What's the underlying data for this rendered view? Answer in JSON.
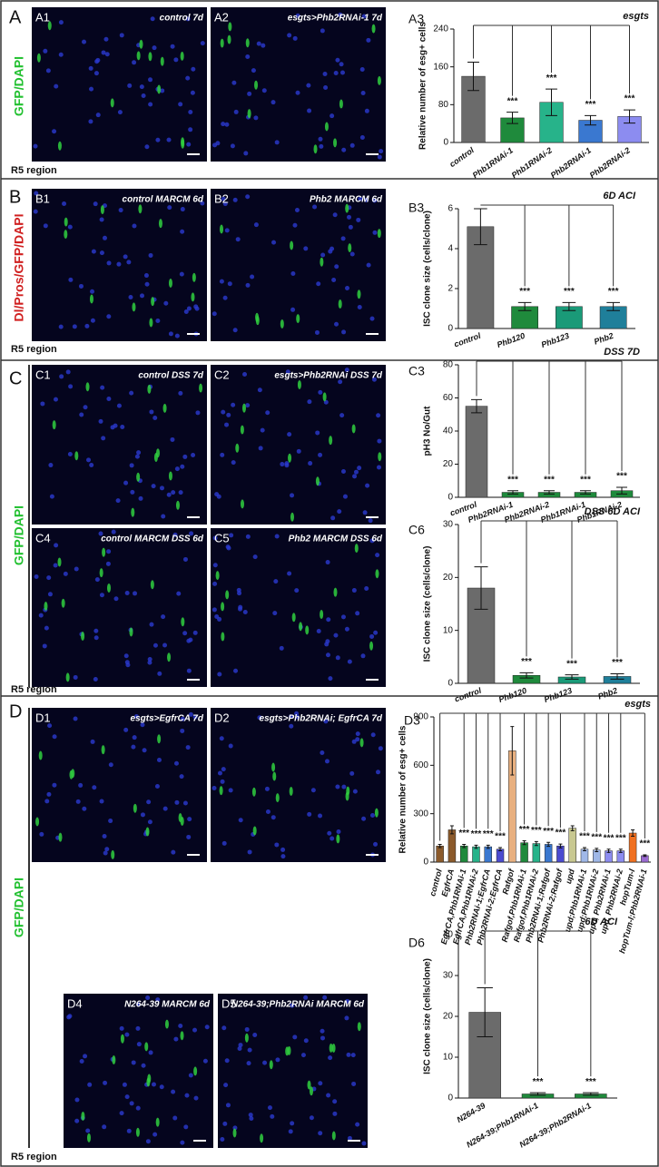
{
  "panels": [
    {
      "letter": "A",
      "side_label": "GFP/DAPI",
      "region": "R5 region"
    },
    {
      "letter": "B",
      "side_label": "Dl/Pros/GFP/DAPI",
      "region": "R5 region"
    },
    {
      "letter": "C",
      "side_label": "GFP/DAPI",
      "region": "R5 region"
    },
    {
      "letter": "D",
      "side_label": "GFP/DAPI",
      "region": "R5 region"
    }
  ],
  "images": [
    {
      "label": "A1",
      "caption": "control 7d"
    },
    {
      "label": "A2",
      "caption": "esgts>Phb2RNAi-1 7d"
    },
    {
      "label": "B1",
      "caption": "control MARCM 6d"
    },
    {
      "label": "B2",
      "caption": "Phb2 MARCM 6d"
    },
    {
      "label": "C1",
      "caption": "control DSS 7d"
    },
    {
      "label": "C2",
      "caption": "esgts>Phb2RNAi DSS 7d"
    },
    {
      "label": "C4",
      "caption": "control MARCM DSS 6d"
    },
    {
      "label": "C5",
      "caption": "Phb2 MARCM DSS 6d"
    },
    {
      "label": "D1",
      "caption": "esgts>EgfrCA 7d"
    },
    {
      "label": "D2",
      "caption": "esgts>Phb2RNAi; EgfrCA 7d"
    },
    {
      "label": "D4",
      "caption": "N264-39 MARCM 6d"
    },
    {
      "label": "D5",
      "caption": "N264-39;Phb2RNAi MARCM 6d"
    }
  ],
  "chart_data": [
    {
      "type": "bar",
      "label": "A3",
      "title": "esgts",
      "ylabel": "Relative number of esg+ cells",
      "categories": [
        "control",
        "Phb1RNAi-1",
        "Phb1RNAi-2",
        "Phb2RNAi-1",
        "Phb2RNAi-2"
      ],
      "values": [
        140,
        52,
        85,
        47,
        55
      ],
      "errors": [
        30,
        12,
        28,
        10,
        14
      ],
      "colors": [
        "#6b6b6b",
        "#1f8a3c",
        "#27b38a",
        "#3a78d0",
        "#8c8cf0"
      ],
      "significance": [
        null,
        "***",
        "***",
        "***",
        "***"
      ],
      "ylim": [
        0,
        240
      ],
      "yticks": [
        0,
        80,
        160,
        240
      ]
    },
    {
      "type": "bar",
      "label": "B3",
      "title": "6D ACI",
      "ylabel": "ISC clone size (cells/clone)",
      "categories": [
        "control",
        "Phb120",
        "Phb123",
        "Phb2"
      ],
      "values": [
        5.1,
        1.1,
        1.1,
        1.1
      ],
      "errors": [
        0.9,
        0.2,
        0.2,
        0.2
      ],
      "colors": [
        "#6b6b6b",
        "#1f8a3c",
        "#1a9a78",
        "#1f7f9a"
      ],
      "significance": [
        null,
        "***",
        "***",
        "***"
      ],
      "ylim": [
        0,
        6
      ],
      "yticks": [
        0,
        2,
        4,
        6
      ]
    },
    {
      "type": "bar",
      "label": "C3",
      "title": "DSS 7D",
      "ylabel": "pH3 No/Gut",
      "categories": [
        "control",
        "Phb2RNAi-1",
        "Phb2RNAi-2",
        "Phb1RNAi-1",
        "Phb1RNAi-2"
      ],
      "values": [
        55,
        3,
        3,
        3,
        4
      ],
      "errors": [
        4,
        1,
        1,
        1,
        2
      ],
      "colors": [
        "#6b6b6b",
        "#1f8a3c",
        "#1f8a3c",
        "#1f8a3c",
        "#1f8a3c"
      ],
      "significance": [
        null,
        "***",
        "***",
        "***",
        "***"
      ],
      "ylim": [
        0,
        80
      ],
      "yticks": [
        0,
        20,
        40,
        60,
        80
      ]
    },
    {
      "type": "bar",
      "label": "C6",
      "title": "DSS 6D ACI",
      "ylabel": "ISC clone size (cells/clone)",
      "categories": [
        "control",
        "Phb120",
        "Phb123",
        "Phb2"
      ],
      "values": [
        18,
        1.5,
        1.2,
        1.3
      ],
      "errors": [
        4,
        0.5,
        0.4,
        0.5
      ],
      "colors": [
        "#6b6b6b",
        "#1f8a3c",
        "#1a9a78",
        "#1f7f9a"
      ],
      "significance": [
        null,
        "***",
        "***",
        "***"
      ],
      "ylim": [
        0,
        30
      ],
      "yticks": [
        0,
        10,
        20,
        30
      ]
    },
    {
      "type": "bar",
      "label": "D3",
      "title": "esgts",
      "ylabel": "Relative number of esg+ cells",
      "categories": [
        "control",
        "EgfrCA",
        "EgfrCA,Phb1RNAi-1",
        "EgfrCA,Phb1RNAi-2",
        "Phb2RNAi-1;EgfrCA",
        "Phb2RNAi-2;EgfrCA",
        "Rafgof",
        "Rafgof,Phb1RNAi-1",
        "Rafgof,Phb1RNAi-2",
        "Phb2RNAi-1;Rafgof",
        "Phb2RNAi-2;Rafgof",
        "upd",
        "upd;Phb1RNAi-1",
        "upd;Phb1RNAi-2",
        "upd, Phb2RNAi-1",
        "upd, Phb2RNAi-2",
        "hopTum-l",
        "hopTum-l;Phb2RNAi-1"
      ],
      "values": [
        100,
        200,
        100,
        95,
        95,
        80,
        690,
        120,
        115,
        110,
        100,
        210,
        80,
        75,
        70,
        70,
        180,
        40
      ],
      "errors": [
        10,
        25,
        10,
        10,
        10,
        10,
        150,
        12,
        12,
        12,
        12,
        15,
        10,
        10,
        10,
        10,
        20,
        5
      ],
      "colors": [
        "#8b5a2b",
        "#8b5a2b",
        "#1f8a3c",
        "#27b38a",
        "#3a78d0",
        "#4b4bd0",
        "#e8b080",
        "#1f8a3c",
        "#27b38a",
        "#3a78d0",
        "#4b4bd0",
        "#c8c890",
        "#a0b8e8",
        "#a0b8e8",
        "#8c8cf0",
        "#8c8cf0",
        "#f07020",
        "#9a6ad0"
      ],
      "significance": [
        null,
        null,
        "***",
        "***",
        "***",
        "***",
        null,
        "***",
        "***",
        "***",
        "***",
        null,
        "***",
        "***",
        "***",
        "***",
        null,
        "***"
      ],
      "ylim": [
        0,
        900
      ],
      "yticks": [
        0,
        300,
        600,
        900
      ]
    },
    {
      "type": "bar",
      "label": "D6",
      "title": "6D ACI",
      "ylabel": "ISC clone size (cells/clone)",
      "categories": [
        "N264-39",
        "N264-39;Phb1RNAi-1",
        "N264-39;Phb2RNAi-1"
      ],
      "values": [
        21,
        1,
        1
      ],
      "errors": [
        6,
        0.3,
        0.3
      ],
      "colors": [
        "#6b6b6b",
        "#1f8a3c",
        "#1f8a3c"
      ],
      "significance": [
        null,
        "***",
        "***"
      ],
      "ylim": [
        0,
        40
      ],
      "yticks": [
        0,
        10,
        20,
        30,
        40
      ]
    }
  ]
}
